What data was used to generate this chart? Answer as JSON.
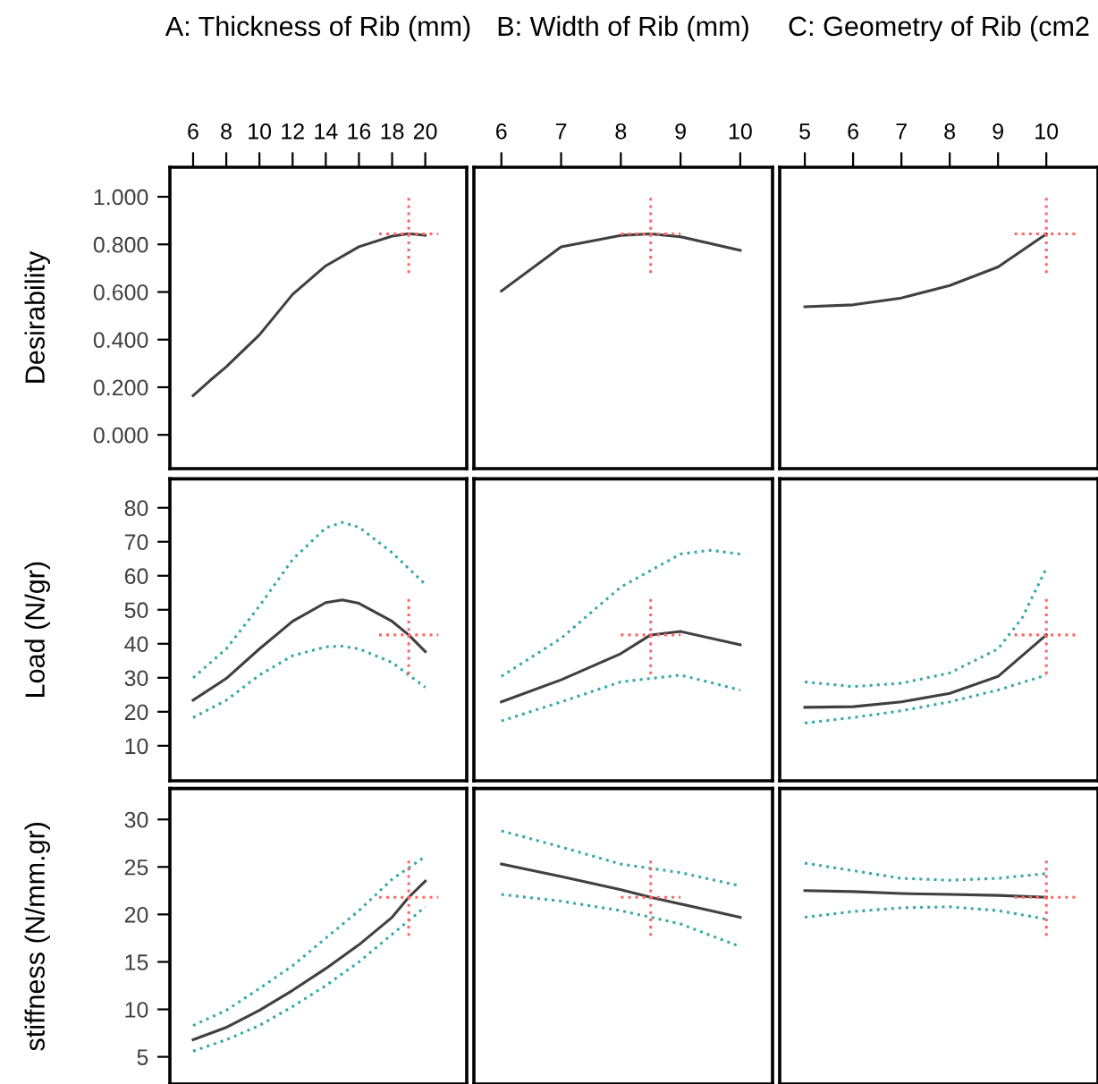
{
  "chart_data": [
    {
      "type": "line",
      "xlabel": "A: Thickness of Rib (mm)",
      "ylabel": "Desirability",
      "xlim": [
        4.6,
        22.5
      ],
      "xticks": [
        6,
        8,
        10,
        12,
        14,
        16,
        18,
        20
      ],
      "ylim": [
        -0.142,
        1.124
      ],
      "yticks": [
        {
          "value": 0,
          "label": "0.000"
        },
        {
          "value": 0.2,
          "label": "0.200"
        },
        {
          "value": 0.4,
          "label": "0.400"
        },
        {
          "value": 0.6,
          "label": "0.600"
        },
        {
          "value": 0.8,
          "label": "0.800"
        },
        {
          "value": 1,
          "label": "1.000"
        }
      ],
      "series": [
        {
          "color": "#404040",
          "line_style": "solid",
          "x": [
            6,
            7,
            8,
            10,
            12,
            14,
            16,
            18,
            19,
            20
          ],
          "values": [
            0.165,
            0.227,
            0.286,
            0.42,
            0.59,
            0.71,
            0.79,
            0.835,
            0.845,
            0.838
          ]
        }
      ],
      "ref_lines": [
        {
          "axis": "x",
          "value": 19,
          "color": "#ff6666",
          "line_style": "dotted"
        },
        {
          "axis": "y",
          "value": 0.844,
          "color": "#ff6666",
          "line_style": "dotted"
        }
      ]
    },
    {
      "type": "line",
      "xlabel": "B: Width of Rib (mm)",
      "xlim": [
        5.54,
        10.54
      ],
      "xticks": [
        6,
        7,
        8,
        9,
        10
      ],
      "ylim": [
        -0.142,
        1.124
      ],
      "yticks": [
        0,
        0.2,
        0.4,
        0.6,
        0.8,
        1
      ],
      "tick_labels": "x",
      "series": [
        {
          "color": "#404040",
          "line_style": "solid",
          "x": [
            6,
            7,
            8,
            8.5,
            9,
            10
          ],
          "values": [
            0.604,
            0.79,
            0.838,
            0.844,
            0.832,
            0.775
          ]
        }
      ],
      "ref_lines": [
        {
          "axis": "x",
          "value": 8.5,
          "color": "#ff6666",
          "line_style": "dotted"
        },
        {
          "axis": "y",
          "value": 0.844,
          "color": "#ff6666",
          "line_style": "dotted"
        }
      ]
    },
    {
      "type": "line",
      "xlabel": "C: Geometry of Rib (cm2",
      "xlim": [
        4.48,
        11.07
      ],
      "xticks": [
        5,
        6,
        7,
        8,
        9,
        10
      ],
      "ylim": [
        -0.142,
        1.124
      ],
      "yticks": [
        0,
        0.2,
        0.4,
        0.6,
        0.8,
        1
      ],
      "tick_labels": "x",
      "series": [
        {
          "color": "#404040",
          "line_style": "solid",
          "x": [
            5,
            6,
            7,
            8,
            9,
            10
          ],
          "values": [
            0.538,
            0.546,
            0.575,
            0.627,
            0.705,
            0.844
          ]
        }
      ],
      "ref_lines": [
        {
          "axis": "x",
          "value": 10,
          "color": "#ff6666",
          "line_style": "dotted"
        },
        {
          "axis": "y",
          "value": 0.844,
          "color": "#ff6666",
          "line_style": "dotted"
        }
      ]
    },
    {
      "type": "line",
      "ylabel": "Load (N/gr)",
      "xlim": [
        4.6,
        22.5
      ],
      "xticks": [
        6,
        8,
        10,
        12,
        14,
        16,
        18,
        20
      ],
      "ylim": [
        -0.3,
        88.5
      ],
      "yticks": [
        10,
        20,
        30,
        40,
        50,
        60,
        70,
        80
      ],
      "tick_labels": "y",
      "series": [
        {
          "color": "#404040",
          "line_style": "solid",
          "x": [
            6,
            8,
            10,
            12,
            14,
            15,
            16,
            18,
            19,
            20
          ],
          "values": [
            23.4,
            29.8,
            38.5,
            46.6,
            52.1,
            52.9,
            51.9,
            46.6,
            42.6,
            37.7
          ]
        },
        {
          "color": "#3aa8a8",
          "line_style": "dotted",
          "x": [
            6,
            8,
            10,
            12,
            14,
            15,
            16,
            18,
            20
          ],
          "values": [
            30.0,
            38.5,
            51.1,
            64.8,
            74.1,
            75.7,
            74.3,
            66.8,
            57.5
          ]
        },
        {
          "color": "#3aa8a8",
          "line_style": "dotted",
          "x": [
            6,
            8,
            10,
            12,
            14,
            15,
            16,
            18,
            20
          ],
          "values": [
            18.3,
            23.4,
            30.8,
            36.5,
            39.1,
            39.3,
            38.5,
            34.5,
            27.2
          ]
        }
      ],
      "ref_lines": [
        {
          "axis": "x",
          "value": 19,
          "color": "#ff6666",
          "line_style": "dotted"
        },
        {
          "axis": "y",
          "value": 42.6,
          "color": "#ff6666",
          "line_style": "dotted"
        }
      ]
    },
    {
      "type": "line",
      "xlim": [
        5.54,
        10.54
      ],
      "xticks": [
        6,
        7,
        8,
        9,
        10
      ],
      "ylim": [
        -0.3,
        88.5
      ],
      "yticks": [
        10,
        20,
        30,
        40,
        50,
        60,
        70,
        80
      ],
      "tick_labels": false,
      "series": [
        {
          "color": "#404040",
          "line_style": "solid",
          "x": [
            6,
            7,
            8,
            8.5,
            9,
            10
          ],
          "values": [
            22.9,
            29.4,
            37.1,
            42.6,
            43.6,
            39.7
          ]
        },
        {
          "color": "#3aa8a8",
          "line_style": "dotted",
          "x": [
            6,
            7,
            8,
            9,
            9.5,
            10
          ],
          "values": [
            30.4,
            41.6,
            56.7,
            66.4,
            67.5,
            66.4
          ]
        },
        {
          "color": "#3aa8a8",
          "line_style": "dotted",
          "x": [
            6,
            7,
            8,
            9,
            10
          ],
          "values": [
            17.3,
            22.9,
            28.8,
            30.8,
            26.4
          ]
        }
      ],
      "ref_lines": [
        {
          "axis": "x",
          "value": 8.5,
          "color": "#ff6666",
          "line_style": "dotted"
        },
        {
          "axis": "y",
          "value": 42.6,
          "color": "#ff6666",
          "line_style": "dotted"
        }
      ]
    },
    {
      "type": "line",
      "xlim": [
        4.48,
        11.07
      ],
      "xticks": [
        5,
        6,
        7,
        8,
        9,
        10
      ],
      "ylim": [
        -0.3,
        88.5
      ],
      "yticks": [
        10,
        20,
        30,
        40,
        50,
        60,
        70,
        80
      ],
      "tick_labels": false,
      "series": [
        {
          "color": "#404040",
          "line_style": "solid",
          "x": [
            5,
            6,
            7,
            8,
            9,
            10
          ],
          "values": [
            21.3,
            21.5,
            22.9,
            25.4,
            30.4,
            42.6
          ]
        },
        {
          "color": "#3aa8a8",
          "line_style": "dotted",
          "x": [
            5,
            6,
            7,
            8,
            9,
            9.5,
            10
          ],
          "values": [
            28.8,
            27.4,
            28.4,
            31.4,
            38.5,
            47.6,
            62.2
          ]
        },
        {
          "color": "#3aa8a8",
          "line_style": "dotted",
          "x": [
            5,
            6,
            7,
            8,
            9,
            10
          ],
          "values": [
            16.7,
            18.3,
            20.3,
            22.9,
            26.4,
            30.8
          ]
        }
      ],
      "ref_lines": [
        {
          "axis": "x",
          "value": 10,
          "color": "#ff6666",
          "line_style": "dotted"
        },
        {
          "axis": "y",
          "value": 42.6,
          "color": "#ff6666",
          "line_style": "dotted"
        }
      ]
    },
    {
      "type": "line",
      "ylabel": "stiffness (N/mm.gr)",
      "xlim": [
        4.6,
        22.5
      ],
      "xticks": [
        6,
        8,
        10,
        12,
        14,
        16,
        18,
        20
      ],
      "ylim": [
        2.14,
        33.26
      ],
      "yticks": [
        5,
        10,
        15,
        20,
        25,
        30
      ],
      "tick_labels": "y",
      "series": [
        {
          "color": "#404040",
          "line_style": "solid",
          "x": [
            6,
            8,
            10,
            12,
            14,
            16,
            18,
            19,
            20
          ],
          "values": [
            6.8,
            8.1,
            9.9,
            12.0,
            14.3,
            16.8,
            19.7,
            21.8,
            23.5
          ]
        },
        {
          "color": "#3aa8a8",
          "line_style": "dotted",
          "x": [
            6,
            8,
            10,
            12,
            14,
            16,
            18,
            20
          ],
          "values": [
            8.3,
            9.9,
            12.2,
            14.6,
            17.5,
            20.4,
            23.7,
            26.1
          ]
        },
        {
          "color": "#3aa8a8",
          "line_style": "dotted",
          "x": [
            6,
            8,
            10,
            12,
            14,
            16,
            18,
            20
          ],
          "values": [
            5.6,
            6.8,
            8.3,
            10.3,
            12.5,
            15.0,
            17.9,
            20.8
          ]
        }
      ],
      "ref_lines": [
        {
          "axis": "x",
          "value": 19,
          "color": "#ff6666",
          "line_style": "dotted"
        },
        {
          "axis": "y",
          "value": 21.8,
          "color": "#ff6666",
          "line_style": "dotted"
        }
      ]
    },
    {
      "type": "line",
      "xlim": [
        5.54,
        10.54
      ],
      "xticks": [
        6,
        7,
        8,
        9,
        10
      ],
      "ylim": [
        2.14,
        33.26
      ],
      "yticks": [
        5,
        10,
        15,
        20,
        25,
        30
      ],
      "tick_labels": false,
      "series": [
        {
          "color": "#404040",
          "line_style": "solid",
          "x": [
            6,
            7,
            8,
            8.5,
            9,
            10
          ],
          "values": [
            25.3,
            24.0,
            22.6,
            21.8,
            21.1,
            19.7
          ]
        },
        {
          "color": "#3aa8a8",
          "line_style": "dotted",
          "x": [
            6,
            7,
            8,
            9,
            10
          ],
          "values": [
            28.8,
            27.1,
            25.3,
            24.4,
            23.0
          ]
        },
        {
          "color": "#3aa8a8",
          "line_style": "dotted",
          "x": [
            6,
            7,
            8,
            9,
            10
          ],
          "values": [
            22.1,
            21.4,
            20.4,
            19.0,
            16.6
          ]
        }
      ],
      "ref_lines": [
        {
          "axis": "x",
          "value": 8.5,
          "color": "#ff6666",
          "line_style": "dotted"
        },
        {
          "axis": "y",
          "value": 21.8,
          "color": "#ff6666",
          "line_style": "dotted"
        }
      ]
    },
    {
      "type": "line",
      "xlim": [
        4.48,
        11.07
      ],
      "xticks": [
        5,
        6,
        7,
        8,
        9,
        10
      ],
      "ylim": [
        2.14,
        33.26
      ],
      "yticks": [
        5,
        10,
        15,
        20,
        25,
        30
      ],
      "tick_labels": false,
      "series": [
        {
          "color": "#404040",
          "line_style": "solid",
          "x": [
            5,
            6,
            7,
            8,
            9,
            10
          ],
          "values": [
            22.5,
            22.4,
            22.2,
            22.1,
            22.0,
            21.8
          ]
        },
        {
          "color": "#3aa8a8",
          "line_style": "dotted",
          "x": [
            5,
            6,
            7,
            8,
            9,
            10
          ],
          "values": [
            25.4,
            24.6,
            23.8,
            23.6,
            23.8,
            24.3
          ]
        },
        {
          "color": "#3aa8a8",
          "line_style": "dotted",
          "x": [
            5,
            6,
            7,
            8,
            9,
            10
          ],
          "values": [
            19.7,
            20.3,
            20.7,
            20.8,
            20.4,
            19.5
          ]
        }
      ],
      "ref_lines": [
        {
          "axis": "x",
          "value": 10,
          "color": "#ff6666",
          "line_style": "dotted"
        },
        {
          "axis": "y",
          "value": 21.8,
          "color": "#ff6666",
          "line_style": "dotted"
        }
      ]
    }
  ]
}
